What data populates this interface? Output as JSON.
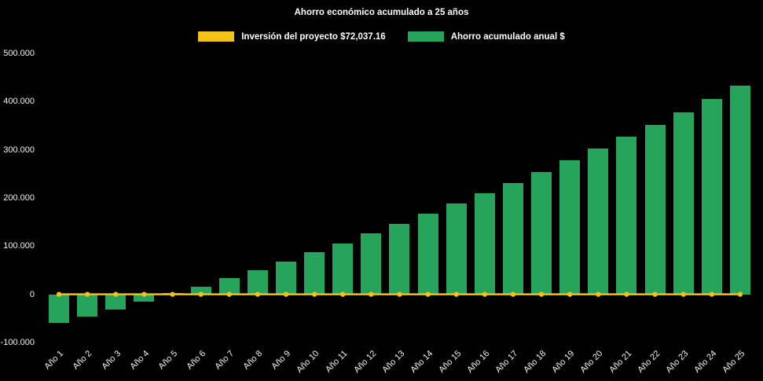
{
  "chart": {
    "title": "Ahorro económico acumulado a 25 años"
  },
  "legend": {
    "items": [
      {
        "label": "Inversión del proyecto $72,037.16",
        "color": "#F2C218"
      },
      {
        "label": "Ahorro acumulado anual $",
        "color": "#27A45B"
      }
    ]
  },
  "chart_data": {
    "type": "bar",
    "title": "Ahorro económico acumulado a 25 años",
    "background": "#000000",
    "grid": false,
    "legend_position": "top",
    "ylim": [
      -100000,
      500000
    ],
    "yticks": [
      {
        "value": -100000,
        "label": "-100.000"
      },
      {
        "value": 0,
        "label": "0"
      },
      {
        "value": 100000,
        "label": "100.000"
      },
      {
        "value": 200000,
        "label": "200.000"
      },
      {
        "value": 300000,
        "label": "300.000"
      },
      {
        "value": 400000,
        "label": "400.000"
      },
      {
        "value": 500000,
        "label": "500.000"
      }
    ],
    "categories": [
      "Año 1",
      "Año 2",
      "Año 3",
      "Año 4",
      "Año 5",
      "Año 6",
      "Año 7",
      "Año 8",
      "Año 9",
      "Año 10",
      "Año 11",
      "Año 12",
      "Año 13",
      "Año 14",
      "Año 15",
      "Año 16",
      "Año 17",
      "Año 18",
      "Año 19",
      "Año 20",
      "Año 21",
      "Año 22",
      "Año 23",
      "Año 24",
      "Año 25"
    ],
    "series": [
      {
        "name": "Inversión del proyecto $72,037.16",
        "type": "line",
        "color": "#F2C218",
        "values": [
          0,
          0,
          0,
          0,
          0,
          0,
          0,
          0,
          0,
          0,
          0,
          0,
          0,
          0,
          0,
          0,
          0,
          0,
          0,
          0,
          0,
          0,
          0,
          0,
          0
        ]
      },
      {
        "name": "Ahorro acumulado anual $",
        "type": "bar",
        "color": "#27A45B",
        "values": [
          -60000,
          -46000,
          -32000,
          -15000,
          2000,
          16000,
          33000,
          50000,
          68000,
          87000,
          106000,
          126000,
          146000,
          167000,
          188000,
          209000,
          231000,
          254000,
          278000,
          302000,
          327000,
          352000,
          378000,
          405000,
          433000
        ]
      }
    ]
  }
}
